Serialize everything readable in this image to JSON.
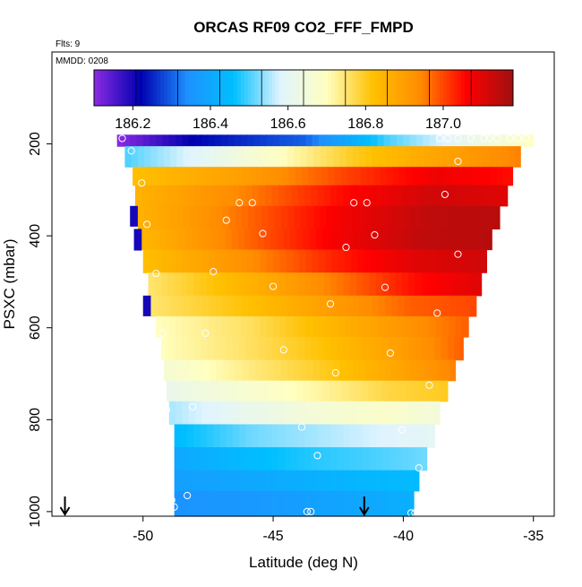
{
  "chart_data": {
    "type": "heatmap",
    "title": "ORCAS RF09 CO2_FFF_FMPD",
    "flights_label": "Flts: 9",
    "date_label": "MMDD: 0208",
    "xlabel": "Latitude (deg N)",
    "ylabel": "PSXC (mbar)",
    "xlim": [
      -53.5,
      -34.2
    ],
    "ylim": [
      1010,
      0
    ],
    "x_ticks": [
      -50,
      -45,
      -40,
      -35
    ],
    "x_tick_labels": [
      "-50",
      "-45",
      "-40",
      "-35"
    ],
    "y_ticks": [
      200,
      400,
      600,
      800,
      1000
    ],
    "y_tick_labels": [
      "200",
      "400",
      "600",
      "800",
      "1000"
    ],
    "colorbar": {
      "min": 186.1,
      "max": 187.18,
      "ticks": [
        186.2,
        186.4,
        186.6,
        186.8,
        187.0
      ],
      "tick_labels": [
        "186.2",
        "186.4",
        "186.6",
        "186.8",
        "187.0"
      ],
      "stops": [
        "#8B2BE2",
        "#0000B0",
        "#1E90FF",
        "#00BFFF",
        "#E0F4FF",
        "#FFFFC0",
        "#FFC000",
        "#FF8C00",
        "#FF0000",
        "#A01010"
      ],
      "bins": 10
    },
    "layers": [
      {
        "p_top": 180,
        "p_bot": 205,
        "lat_start": -51.0,
        "lat_end": -35.0,
        "profile": [
          [
            0,
            186.1
          ],
          [
            0.18,
            186.22
          ],
          [
            0.45,
            186.3
          ],
          [
            0.65,
            186.5
          ],
          [
            0.85,
            186.62
          ],
          [
            1,
            186.7
          ]
        ]
      },
      {
        "p_top": 205,
        "p_bot": 250,
        "lat_start": -50.7,
        "lat_end": -35.5,
        "profile": [
          [
            0,
            186.5
          ],
          [
            0.2,
            186.6
          ],
          [
            0.4,
            186.7
          ],
          [
            0.58,
            186.8
          ],
          [
            0.78,
            186.88
          ],
          [
            1,
            186.95
          ]
        ]
      },
      {
        "p_top": 250,
        "p_bot": 290,
        "lat_start": -50.4,
        "lat_end": -35.8,
        "profile": [
          [
            0,
            186.82
          ],
          [
            0.3,
            186.9
          ],
          [
            0.55,
            187.0
          ],
          [
            0.8,
            187.08
          ],
          [
            1,
            187.05
          ]
        ]
      },
      {
        "p_top": 290,
        "p_bot": 335,
        "lat_start": -50.3,
        "lat_end": -36.0,
        "profile": [
          [
            0,
            186.85
          ],
          [
            0.3,
            186.95
          ],
          [
            0.55,
            187.05
          ],
          [
            0.8,
            187.12
          ],
          [
            1,
            187.1
          ]
        ]
      },
      {
        "p_top": 335,
        "p_bot": 385,
        "lat_start": -50.2,
        "lat_end": -36.3,
        "profile": [
          [
            0,
            186.85
          ],
          [
            0.3,
            186.97
          ],
          [
            0.55,
            187.07
          ],
          [
            0.8,
            187.14
          ],
          [
            1,
            187.15
          ]
        ]
      },
      {
        "p_top": 385,
        "p_bot": 430,
        "lat_start": -50.1,
        "lat_end": -36.6,
        "profile": [
          [
            0,
            186.84
          ],
          [
            0.3,
            186.97
          ],
          [
            0.55,
            187.07
          ],
          [
            0.8,
            187.14
          ],
          [
            1,
            187.15
          ]
        ]
      },
      {
        "p_top": 430,
        "p_bot": 480,
        "lat_start": -50.0,
        "lat_end": -36.8,
        "profile": [
          [
            0,
            186.82
          ],
          [
            0.3,
            186.93
          ],
          [
            0.55,
            187.03
          ],
          [
            0.8,
            187.1
          ],
          [
            1,
            187.12
          ]
        ]
      },
      {
        "p_top": 480,
        "p_bot": 530,
        "lat_start": -49.8,
        "lat_end": -37.0,
        "profile": [
          [
            0,
            186.75
          ],
          [
            0.3,
            186.85
          ],
          [
            0.55,
            186.95
          ],
          [
            0.8,
            187.05
          ],
          [
            1,
            187.1
          ]
        ]
      },
      {
        "p_top": 530,
        "p_bot": 575,
        "lat_start": -49.7,
        "lat_end": -37.2,
        "profile": [
          [
            0,
            186.75
          ],
          [
            0.3,
            186.82
          ],
          [
            0.55,
            186.9
          ],
          [
            0.8,
            186.98
          ],
          [
            1,
            187.0
          ]
        ]
      },
      {
        "p_top": 575,
        "p_bot": 620,
        "lat_start": -49.5,
        "lat_end": -37.5,
        "profile": [
          [
            0,
            186.7
          ],
          [
            0.3,
            186.76
          ],
          [
            0.55,
            186.84
          ],
          [
            0.8,
            186.92
          ],
          [
            1,
            186.98
          ]
        ]
      },
      {
        "p_top": 620,
        "p_bot": 670,
        "lat_start": -49.3,
        "lat_end": -37.7,
        "profile": [
          [
            0,
            186.7
          ],
          [
            0.3,
            186.76
          ],
          [
            0.55,
            186.82
          ],
          [
            0.8,
            186.9
          ],
          [
            1,
            186.98
          ]
        ]
      },
      {
        "p_top": 670,
        "p_bot": 715,
        "lat_start": -49.2,
        "lat_end": -38.0,
        "profile": [
          [
            0,
            186.66
          ],
          [
            0.3,
            186.74
          ],
          [
            0.55,
            186.8
          ],
          [
            0.8,
            186.88
          ],
          [
            1,
            186.95
          ]
        ]
      },
      {
        "p_top": 715,
        "p_bot": 760,
        "lat_start": -49.1,
        "lat_end": -38.3,
        "profile": [
          [
            0,
            186.62
          ],
          [
            0.3,
            186.67
          ],
          [
            0.55,
            186.72
          ],
          [
            0.8,
            186.78
          ],
          [
            1,
            186.8
          ]
        ]
      },
      {
        "p_top": 760,
        "p_bot": 810,
        "lat_start": -49.0,
        "lat_end": -38.6,
        "profile": [
          [
            0,
            186.55
          ],
          [
            0.3,
            186.62
          ],
          [
            0.55,
            186.66
          ],
          [
            0.8,
            186.68
          ],
          [
            1,
            186.65
          ]
        ]
      },
      {
        "p_top": 810,
        "p_bot": 860,
        "lat_start": -48.8,
        "lat_end": -38.8,
        "profile": [
          [
            0,
            186.45
          ],
          [
            0.3,
            186.52
          ],
          [
            0.55,
            186.55
          ],
          [
            0.8,
            186.58
          ],
          [
            1,
            186.6
          ]
        ]
      },
      {
        "p_top": 860,
        "p_bot": 910,
        "lat_start": -48.8,
        "lat_end": -39.1,
        "profile": [
          [
            0,
            186.4
          ],
          [
            0.3,
            186.45
          ],
          [
            0.55,
            186.48
          ],
          [
            0.8,
            186.5
          ],
          [
            1,
            186.52
          ]
        ]
      },
      {
        "p_top": 910,
        "p_bot": 955,
        "lat_start": -48.8,
        "lat_end": -39.4,
        "profile": [
          [
            0,
            186.38
          ],
          [
            0.3,
            186.4
          ],
          [
            0.55,
            186.42
          ],
          [
            0.8,
            186.44
          ],
          [
            1,
            186.45
          ]
        ]
      },
      {
        "p_top": 955,
        "p_bot": 1010,
        "lat_start": -48.8,
        "lat_end": -39.6,
        "profile": [
          [
            0,
            186.35
          ],
          [
            0.3,
            186.36
          ],
          [
            0.55,
            186.38
          ],
          [
            0.8,
            186.4
          ],
          [
            1,
            186.42
          ]
        ]
      }
    ],
    "dark_edge_cells": [
      {
        "lat": -50.35,
        "p_top": 335,
        "p_bot": 380,
        "value": 186.2
      },
      {
        "lat": -50.2,
        "p_top": 385,
        "p_bot": 432,
        "value": 186.2
      },
      {
        "lat": -49.85,
        "p_top": 530,
        "p_bot": 575,
        "value": 186.2
      }
    ],
    "samples": [
      {
        "lat": -50.8,
        "p": 188
      },
      {
        "lat": -50.45,
        "p": 215
      },
      {
        "lat": -50.05,
        "p": 285
      },
      {
        "lat": -49.85,
        "p": 375
      },
      {
        "lat": -49.5,
        "p": 482
      },
      {
        "lat": -49.25,
        "p": 612
      },
      {
        "lat": -49.1,
        "p": 778
      },
      {
        "lat": -48.9,
        "p": 975
      },
      {
        "lat": -48.8,
        "p": 990
      },
      {
        "lat": -48.3,
        "p": 965
      },
      {
        "lat": -48.1,
        "p": 772
      },
      {
        "lat": -47.6,
        "p": 612
      },
      {
        "lat": -47.3,
        "p": 478
      },
      {
        "lat": -46.8,
        "p": 366
      },
      {
        "lat": -46.3,
        "p": 328
      },
      {
        "lat": -45.8,
        "p": 328
      },
      {
        "lat": -45.4,
        "p": 395
      },
      {
        "lat": -45.0,
        "p": 510
      },
      {
        "lat": -44.6,
        "p": 648
      },
      {
        "lat": -43.9,
        "p": 816
      },
      {
        "lat": -43.7,
        "p": 1000
      },
      {
        "lat": -43.55,
        "p": 1000
      },
      {
        "lat": -43.3,
        "p": 878
      },
      {
        "lat": -42.8,
        "p": 548
      },
      {
        "lat": -42.6,
        "p": 698
      },
      {
        "lat": -42.2,
        "p": 425
      },
      {
        "lat": -41.9,
        "p": 328
      },
      {
        "lat": -41.4,
        "p": 328
      },
      {
        "lat": -41.1,
        "p": 398
      },
      {
        "lat": -40.7,
        "p": 512
      },
      {
        "lat": -40.5,
        "p": 655
      },
      {
        "lat": -40.05,
        "p": 822
      },
      {
        "lat": -39.7,
        "p": 1003
      },
      {
        "lat": -39.55,
        "p": 1003
      },
      {
        "lat": -39.4,
        "p": 905
      },
      {
        "lat": -39.0,
        "p": 725
      },
      {
        "lat": -38.7,
        "p": 568
      },
      {
        "lat": -38.4,
        "p": 310
      },
      {
        "lat": -37.9,
        "p": 440
      },
      {
        "lat": -37.9,
        "p": 238
      },
      {
        "lat": -38.6,
        "p": 188
      },
      {
        "lat": -38.3,
        "p": 188
      },
      {
        "lat": -37.9,
        "p": 188
      },
      {
        "lat": -37.4,
        "p": 188
      },
      {
        "lat": -36.9,
        "p": 188
      },
      {
        "lat": -36.7,
        "p": 188
      },
      {
        "lat": -36.4,
        "p": 188
      },
      {
        "lat": -35.9,
        "p": 188
      },
      {
        "lat": -35.6,
        "p": 188
      },
      {
        "lat": -35.3,
        "p": 188
      }
    ],
    "arrows": [
      {
        "lat": -53.0,
        "p": 1005
      },
      {
        "lat": -41.5,
        "p": 1005
      }
    ]
  }
}
